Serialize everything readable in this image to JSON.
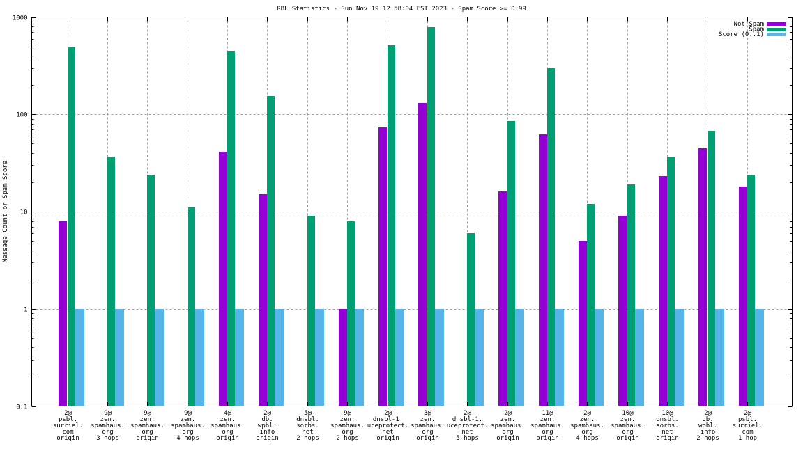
{
  "chart_data": {
    "type": "bar",
    "title": "RBL Statistics - Sun Nov 19 12:58:04 EST 2023 - Spam Score >= 0.99",
    "xlabel": "",
    "ylabel": "Message Count or Spam Score",
    "yscale": "log",
    "ylim": [
      0.1,
      1000
    ],
    "yticks": [
      {
        "value": 0.1,
        "label": "0.1"
      },
      {
        "value": 1,
        "label": "1"
      },
      {
        "value": 10,
        "label": "10"
      },
      {
        "value": 100,
        "label": "100"
      },
      {
        "value": 1000,
        "label": "1000"
      }
    ],
    "grid": true,
    "legend_position": "top-right",
    "categories": [
      [
        "2@",
        "psbl.",
        "surriel.",
        "com",
        "origin"
      ],
      [
        "9@",
        "zen.",
        "spamhaus.",
        "org",
        "3 hops"
      ],
      [
        "9@",
        "zen.",
        "spamhaus.",
        "org",
        "origin"
      ],
      [
        "9@",
        "zen.",
        "spamhaus.",
        "org",
        "4 hops"
      ],
      [
        "4@",
        "zen.",
        "spamhaus.",
        "org",
        "origin"
      ],
      [
        "2@",
        "db.",
        "wpbl.",
        "info",
        "origin"
      ],
      [
        "5@",
        "dnsbl.",
        "sorbs.",
        "net",
        "2 hops"
      ],
      [
        "9@",
        "zen.",
        "spamhaus.",
        "org",
        "2 hops"
      ],
      [
        "2@",
        "dnsbl-1.",
        "uceprotect.",
        "net",
        "origin"
      ],
      [
        "3@",
        "zen.",
        "spamhaus.",
        "org",
        "origin"
      ],
      [
        "2@",
        "dnsbl-1.",
        "uceprotect.",
        "net",
        "5 hops"
      ],
      [
        "2@",
        "zen.",
        "spamhaus.",
        "org",
        "origin"
      ],
      [
        "11@",
        "zen.",
        "spamhaus.",
        "org",
        "origin"
      ],
      [
        "2@",
        "zen.",
        "spamhaus.",
        "org",
        "4 hops"
      ],
      [
        "10@",
        "zen.",
        "spamhaus.",
        "org",
        "origin"
      ],
      [
        "10@",
        "dnsbl.",
        "sorbs.",
        "net",
        "origin"
      ],
      [
        "2@",
        "db.",
        "wpbl.",
        "info",
        "2 hops"
      ],
      [
        "2@",
        "psbl.",
        "surriel.",
        "com",
        "1 hop"
      ]
    ],
    "series": [
      {
        "name": "Not Spam",
        "color": "#9400d3",
        "values": [
          8,
          null,
          null,
          null,
          41,
          15,
          null,
          1,
          73,
          130,
          null,
          16,
          62,
          5,
          9,
          23,
          45,
          18
        ]
      },
      {
        "name": "Spam",
        "color": "#009e73",
        "values": [
          490,
          37,
          24,
          11,
          450,
          155,
          9,
          8,
          510,
          790,
          6,
          85,
          300,
          12,
          19,
          37,
          68,
          24
        ]
      },
      {
        "name": "Score (0..1)",
        "color": "#56b4e9",
        "values": [
          1,
          1,
          1,
          1,
          1,
          1,
          1,
          1,
          1,
          1,
          1,
          1,
          1,
          1,
          1,
          1,
          1,
          1
        ]
      }
    ]
  }
}
